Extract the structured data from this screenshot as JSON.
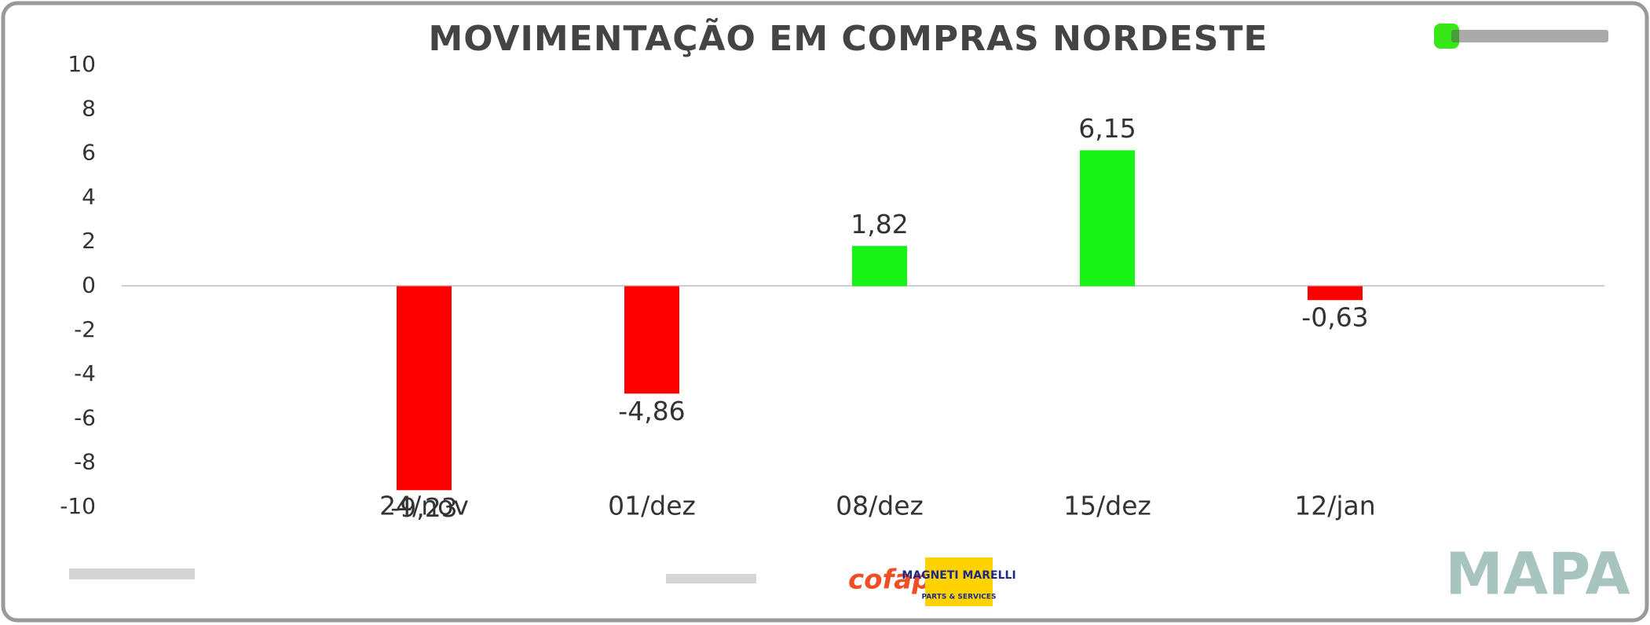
{
  "chart_data": {
    "type": "bar",
    "title": "MOVIMENTAÇÃO EM COMPRAS NORDESTE",
    "categories": [
      "24/nov",
      "01/dez",
      "08/dez",
      "15/dez",
      "12/jan"
    ],
    "values": [
      -9.23,
      -4.86,
      1.82,
      6.15,
      -0.63
    ],
    "value_labels": [
      "-9,23",
      "-4,86",
      "1,82",
      "6,15",
      "-0,63"
    ],
    "colors": [
      "#ff0000",
      "#ff0000",
      "#17f217",
      "#17f217",
      "#ff0000"
    ],
    "ylim": [
      -10,
      10
    ],
    "yticks": [
      -10,
      -8,
      -6,
      -4,
      -2,
      0,
      2,
      4,
      6,
      8,
      10
    ],
    "grid": false
  },
  "footer": {
    "sponsor_1": "cofap",
    "sponsor_2": "MAGNETI MARELLI",
    "sponsor_2_sub": "PARTS & SERVICES",
    "brand": "MAPA"
  }
}
